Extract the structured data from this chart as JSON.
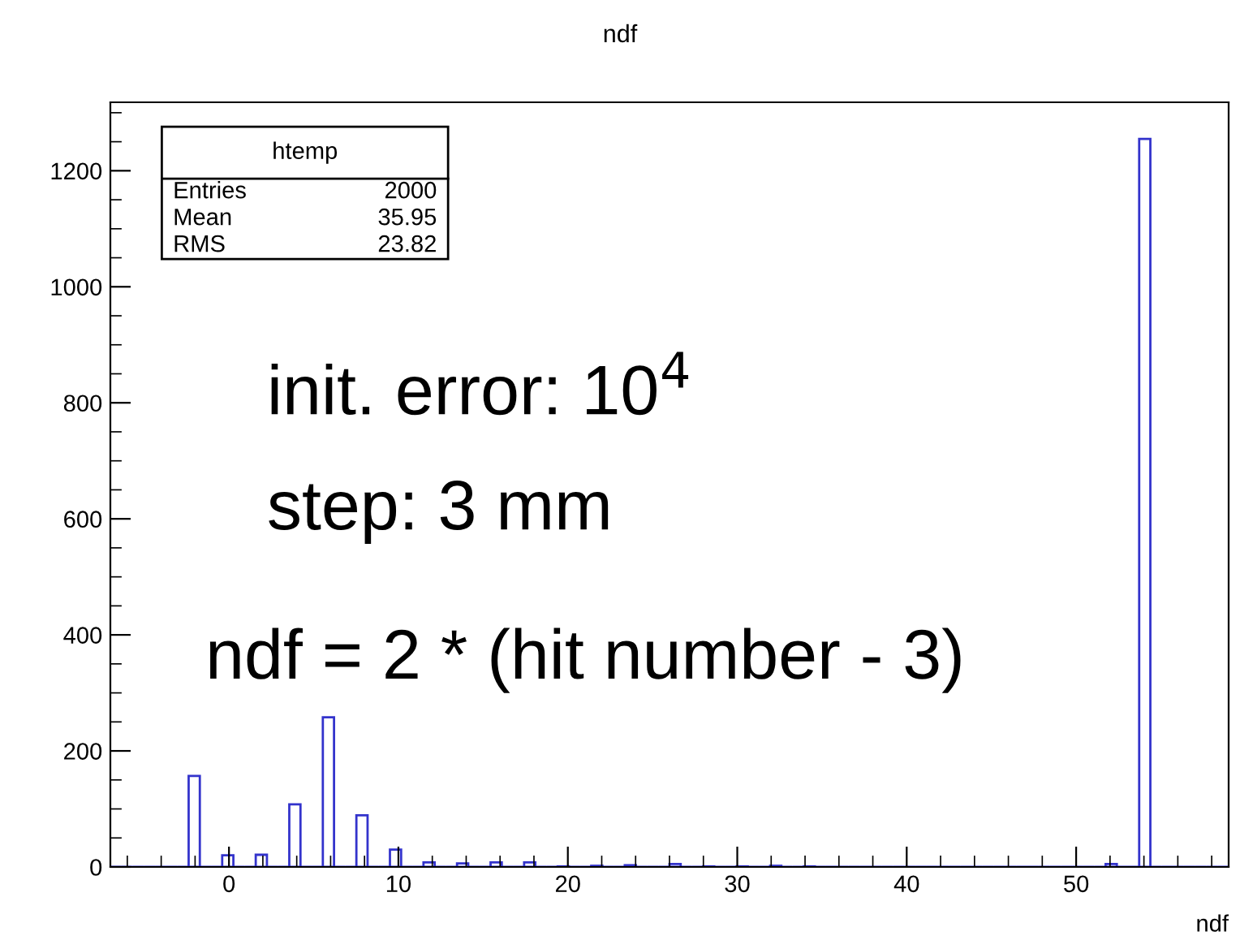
{
  "chart_data": {
    "type": "histogram",
    "title": "ndf",
    "xlabel": "ndf",
    "bins": [
      -7.0,
      -6.34,
      -5.68,
      -5.02,
      -4.36,
      -3.7,
      -3.04,
      -2.38,
      -1.72,
      -1.06,
      -0.4,
      0.26,
      0.92,
      1.58,
      2.24,
      2.9,
      3.56,
      4.22,
      4.88,
      5.54,
      6.2,
      6.86,
      7.52,
      8.18,
      8.84,
      9.5,
      10.16,
      10.82,
      11.48,
      12.14,
      12.8,
      13.46,
      14.12,
      14.78,
      15.44,
      16.1,
      16.76,
      17.42,
      18.08,
      18.74,
      19.4,
      20.06,
      20.72,
      21.38,
      22.04,
      22.7,
      23.36,
      24.02,
      24.68,
      25.34,
      26.0,
      26.66,
      27.32,
      27.98,
      28.64,
      29.3,
      29.96,
      30.62,
      31.28,
      31.94,
      32.6,
      33.26,
      33.92,
      34.58,
      35.24,
      35.9,
      36.56,
      37.22,
      37.88,
      38.54,
      39.2,
      39.86,
      40.52,
      41.18,
      41.84,
      42.5,
      43.16,
      43.82,
      44.48,
      45.14,
      45.8,
      46.46,
      47.12,
      47.78,
      48.44,
      49.1,
      49.76,
      50.42,
      51.08,
      51.74,
      52.4,
      53.06,
      53.72,
      54.38,
      55.04,
      55.7,
      56.36,
      57.02,
      57.68,
      58.34,
      59.0
    ],
    "values": [
      0,
      0,
      0,
      0,
      0,
      0,
      0,
      157,
      0,
      0,
      20,
      0,
      0,
      21,
      0,
      0,
      108,
      0,
      0,
      258,
      0,
      0,
      89,
      0,
      0,
      30,
      0,
      0,
      8,
      0,
      0,
      6,
      0,
      0,
      8,
      0,
      0,
      8,
      0,
      0,
      1,
      0,
      0,
      2,
      0,
      0,
      3,
      0,
      0,
      0,
      5,
      0,
      0,
      1,
      0,
      0,
      1,
      0,
      0,
      2,
      0,
      0,
      1,
      0,
      0,
      0,
      0,
      0,
      0,
      0,
      0,
      0,
      0,
      0,
      0,
      0,
      0,
      0,
      0,
      0,
      0,
      0,
      0,
      0,
      0,
      0,
      0,
      0,
      0,
      5,
      0,
      0,
      1255,
      0,
      0,
      0,
      0,
      0,
      0,
      0
    ],
    "color": "#3333cc",
    "xlim": [
      -7,
      59
    ],
    "xticks": [
      0,
      10,
      20,
      30,
      40,
      50
    ],
    "ylim": [
      0,
      1318
    ],
    "yticks": [
      0,
      200,
      400,
      600,
      800,
      1000,
      1200
    ],
    "grid": false,
    "legend": false,
    "annotations": [
      "htemp",
      "Entries",
      "2000",
      "Mean",
      "35.95",
      "RMS",
      "23.82",
      "init. error: 10$^{4}$",
      "step: 3 mm",
      "ndf = 2 * (hit number - 3)"
    ]
  }
}
